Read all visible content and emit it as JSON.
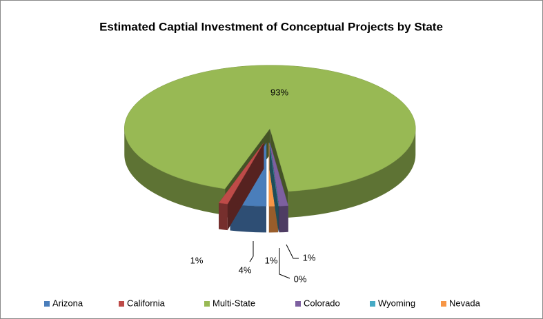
{
  "chart_data": {
    "type": "pie3d",
    "title": "Estimated Captial Investment of Conceptual Projects by State",
    "categories": [
      "Arizona",
      "California",
      "Multi-State",
      "Colorado",
      "Wyoming",
      "Nevada"
    ],
    "values": [
      4,
      1,
      93,
      1,
      0,
      1
    ],
    "value_labels": [
      "4%",
      "1%",
      "93%",
      "1%",
      "0%",
      "1%"
    ],
    "colors": [
      "#4a7ebb",
      "#be4b48",
      "#98b954",
      "#7d60a0",
      "#46aac5",
      "#f79646"
    ],
    "legend": "bottom"
  }
}
